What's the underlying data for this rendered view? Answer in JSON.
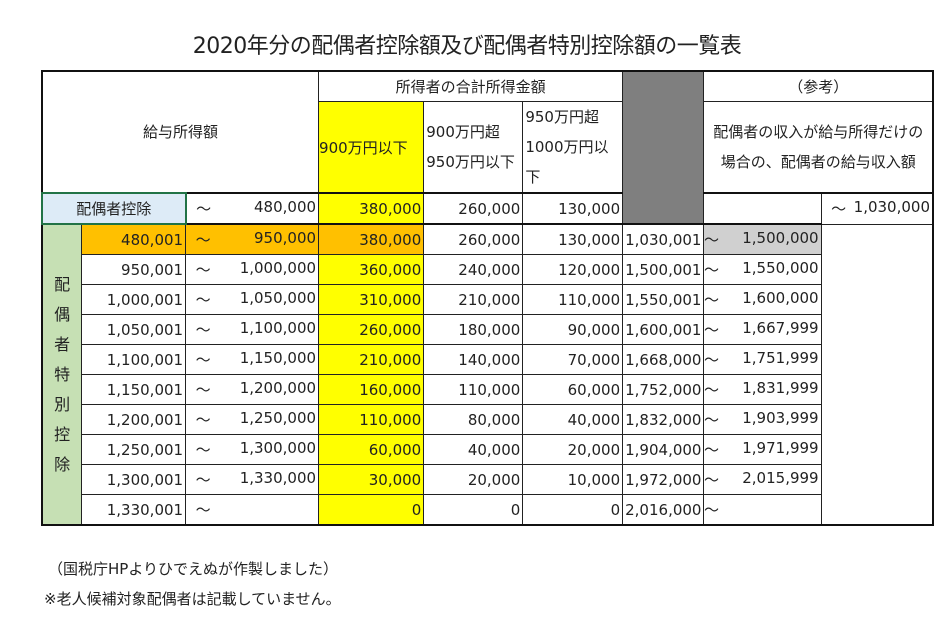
{
  "title": "2020年分の配偶者控除額及び配偶者特別控除額の一覧表",
  "header": {
    "salary": "給与所得額",
    "total_income": "所得者の合計所得金額",
    "col1": "900万円以下",
    "col2": "900万円超 950万円以下",
    "col3": "950万円超 1000万円以下",
    "reference": "（参考）",
    "reference_desc": "配偶者の収入が給与所得だけの場合の、配偶者の給与収入額"
  },
  "spousal_deduction": {
    "label": "配偶者控除",
    "tilde": "～",
    "to": "480,000",
    "v1": "380,000",
    "v2": "260,000",
    "v3": "130,000",
    "ref_from": "",
    "ref_to": "1,030,000"
  },
  "special_label": "配偶者特別控除",
  "rows": [
    {
      "from": "480,001",
      "to": "950,000",
      "v1": "380,000",
      "v2": "260,000",
      "v3": "130,000",
      "ref_from": "1,030,001",
      "ref_to": "1,500,000"
    },
    {
      "from": "950,001",
      "to": "1,000,000",
      "v1": "360,000",
      "v2": "240,000",
      "v3": "120,000",
      "ref_from": "1,500,001",
      "ref_to": "1,550,000"
    },
    {
      "from": "1,000,001",
      "to": "1,050,000",
      "v1": "310,000",
      "v2": "210,000",
      "v3": "110,000",
      "ref_from": "1,550,001",
      "ref_to": "1,600,000"
    },
    {
      "from": "1,050,001",
      "to": "1,100,000",
      "v1": "260,000",
      "v2": "180,000",
      "v3": "90,000",
      "ref_from": "1,600,001",
      "ref_to": "1,667,999"
    },
    {
      "from": "1,100,001",
      "to": "1,150,000",
      "v1": "210,000",
      "v2": "140,000",
      "v3": "70,000",
      "ref_from": "1,668,000",
      "ref_to": "1,751,999"
    },
    {
      "from": "1,150,001",
      "to": "1,200,000",
      "v1": "160,000",
      "v2": "110,000",
      "v3": "60,000",
      "ref_from": "1,752,000",
      "ref_to": "1,831,999"
    },
    {
      "from": "1,200,001",
      "to": "1,250,000",
      "v1": "110,000",
      "v2": "80,000",
      "v3": "40,000",
      "ref_from": "1,832,000",
      "ref_to": "1,903,999"
    },
    {
      "from": "1,250,001",
      "to": "1,300,000",
      "v1": "60,000",
      "v2": "40,000",
      "v3": "20,000",
      "ref_from": "1,904,000",
      "ref_to": "1,971,999"
    },
    {
      "from": "1,300,001",
      "to": "1,330,000",
      "v1": "30,000",
      "v2": "20,000",
      "v3": "10,000",
      "ref_from": "1,972,000",
      "ref_to": "2,015,999"
    },
    {
      "from": "1,330,001",
      "to": "",
      "v1": "0",
      "v2": "0",
      "v3": "0",
      "ref_from": "2,016,000",
      "ref_to": ""
    }
  ],
  "tilde": "～",
  "footer": {
    "note1": "（国税庁HPよりひでえぬが作製しました）",
    "note2": "※老人候補対象配偶者は記載していません。"
  },
  "colors": {
    "yellow": "#ffff00",
    "orange": "#ffc000",
    "green": "#c6e0b4",
    "blue": "#ddebf7",
    "gray": "#7f7f7f"
  }
}
